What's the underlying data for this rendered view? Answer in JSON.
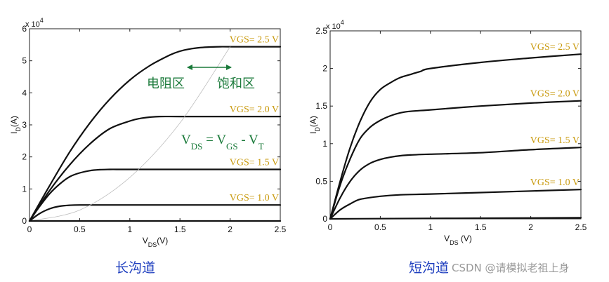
{
  "chart_data": [
    {
      "type": "line",
      "title": "",
      "xlabel": "V_DS(V)",
      "ylabel": "I_D(A)",
      "y_exponent": "x 10^4",
      "xlim": [
        0,
        2.5
      ],
      "ylim": [
        0,
        6
      ],
      "xticks": [
        "0",
        "0.5",
        "1",
        "1.5",
        "2",
        "2.5"
      ],
      "yticks": [
        "0",
        "1",
        "2",
        "3",
        "4",
        "5",
        "6"
      ],
      "series": [
        {
          "name": "VGS= 1.0 V",
          "x": [
            0,
            0.1,
            0.2,
            0.3,
            0.4,
            0.5,
            0.75,
            1.0,
            1.5,
            2.0,
            2.5
          ],
          "y": [
            0,
            0.23,
            0.38,
            0.46,
            0.49,
            0.5,
            0.5,
            0.5,
            0.5,
            0.5,
            0.5
          ]
        },
        {
          "name": "VGS= 1.5 V",
          "x": [
            0,
            0.1,
            0.2,
            0.3,
            0.4,
            0.5,
            0.6,
            0.7,
            0.8,
            0.9,
            1.0,
            1.5,
            2.0,
            2.5
          ],
          "y": [
            0,
            0.45,
            0.85,
            1.15,
            1.38,
            1.5,
            1.57,
            1.6,
            1.61,
            1.61,
            1.61,
            1.61,
            1.61,
            1.61
          ]
        },
        {
          "name": "VGS= 2.0 V",
          "x": [
            0,
            0.2,
            0.4,
            0.6,
            0.8,
            1.0,
            1.1,
            1.2,
            1.3,
            1.5,
            2.0,
            2.5
          ],
          "y": [
            0,
            0.95,
            1.75,
            2.4,
            2.88,
            3.12,
            3.2,
            3.24,
            3.26,
            3.26,
            3.26,
            3.26
          ]
        },
        {
          "name": "VGS= 2.5 V",
          "x": [
            0,
            0.2,
            0.4,
            0.6,
            0.8,
            1.0,
            1.2,
            1.4,
            1.5,
            1.6,
            1.7,
            1.8,
            1.9,
            2.0,
            2.5
          ],
          "y": [
            0,
            1.1,
            2.15,
            3.05,
            3.8,
            4.4,
            4.85,
            5.18,
            5.3,
            5.37,
            5.41,
            5.43,
            5.44,
            5.44,
            5.44
          ]
        },
        {
          "name": "V_DS = V_GS - V_T",
          "x": [
            0,
            0.5,
            1.0,
            1.5,
            2.0
          ],
          "y": [
            0,
            0.34,
            1.36,
            3.06,
            5.44
          ]
        },
        {
          "name": "",
          "x": [
            0,
            2.5
          ],
          "y": [
            0,
            0
          ]
        }
      ],
      "annotations": [
        "电阻区",
        "饱和区",
        "V_DS = V_GS - V_T"
      ],
      "colors": {
        "curve": "#111111",
        "label": "#c99a0e",
        "annot": "#1a7a3a",
        "boundary": "#bdbdbd"
      }
    },
    {
      "type": "line",
      "title": "",
      "xlabel": "V_DS (V)",
      "ylabel": "I_D(A)",
      "y_exponent": "x 10^4",
      "xlim": [
        0,
        2.5
      ],
      "ylim": [
        0,
        2.5
      ],
      "xticks": [
        "0",
        "0.5",
        "1",
        "1.5",
        "2",
        "2.5"
      ],
      "yticks": [
        "0",
        "0.5",
        "1",
        "1.5",
        "2",
        "2.5"
      ],
      "series": [
        {
          "name": "VGS= 1.0 V",
          "x": [
            0,
            0.1,
            0.2,
            0.3,
            0.5,
            0.7,
            1.0,
            1.5,
            2.0,
            2.5
          ],
          "y": [
            0,
            0.12,
            0.2,
            0.26,
            0.3,
            0.32,
            0.33,
            0.35,
            0.37,
            0.39
          ]
        },
        {
          "name": "VGS= 1.5 V",
          "x": [
            0,
            0.1,
            0.2,
            0.3,
            0.4,
            0.5,
            0.6,
            0.7,
            0.8,
            1.0,
            1.5,
            2.0,
            2.5
          ],
          "y": [
            0,
            0.28,
            0.5,
            0.65,
            0.74,
            0.79,
            0.82,
            0.84,
            0.85,
            0.86,
            0.88,
            0.92,
            0.95
          ]
        },
        {
          "name": "VGS= 2.0 V",
          "x": [
            0,
            0.1,
            0.2,
            0.3,
            0.4,
            0.5,
            0.6,
            0.7,
            0.8,
            1.0,
            1.5,
            2.0,
            2.5
          ],
          "y": [
            0,
            0.45,
            0.8,
            1.07,
            1.22,
            1.31,
            1.37,
            1.41,
            1.43,
            1.45,
            1.5,
            1.54,
            1.57
          ]
        },
        {
          "name": "VGS= 2.5 V",
          "x": [
            0,
            0.1,
            0.2,
            0.3,
            0.4,
            0.5,
            0.6,
            0.7,
            0.8,
            0.9,
            1.0,
            1.5,
            2.0,
            2.5
          ],
          "y": [
            0,
            0.5,
            0.95,
            1.3,
            1.56,
            1.72,
            1.81,
            1.88,
            1.92,
            1.96,
            2.0,
            2.08,
            2.14,
            2.19
          ]
        },
        {
          "name": "",
          "x": [
            0,
            2.5
          ],
          "y": [
            0,
            0.015
          ]
        }
      ],
      "colors": {
        "curve": "#111111",
        "label": "#c99a0e"
      }
    }
  ],
  "captions": {
    "left": "长沟道",
    "right": "短沟道"
  },
  "watermark": "CSDN @请模拟老祖上身"
}
